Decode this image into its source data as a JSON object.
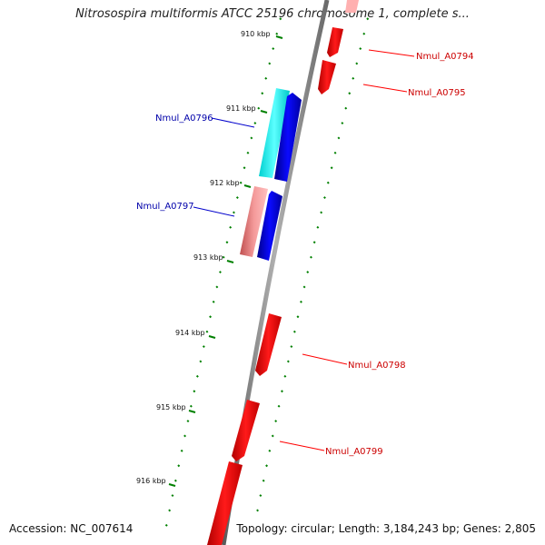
{
  "header": {
    "title": "Nitrosospira multiformis ATCC 25196 chromosome 1, complete s..."
  },
  "footer": {
    "accession": "Accession: NC_007614",
    "summary": "Topology: circular; Length: 3,184,243 bp; Genes: 2,805"
  },
  "scale": {
    "ticks": [
      "910 kbp",
      "911 kbp",
      "912 kbp",
      "913 kbp",
      "914 kbp",
      "915 kbp",
      "916 kbp"
    ]
  },
  "genes": {
    "reverse": [
      "Nmul_A0794",
      "Nmul_A0795",
      "Nmul_A0798",
      "Nmul_A0799"
    ],
    "forward": [
      "Nmul_A0796",
      "Nmul_A0797"
    ]
  },
  "colors": {
    "reverse_gene": "#ff0000",
    "forward_gene": "#0000ff",
    "cds_cyan": "#33ffff",
    "cds_pink": "#e87a7a",
    "tick": "#008000",
    "backbone": "#888888"
  }
}
